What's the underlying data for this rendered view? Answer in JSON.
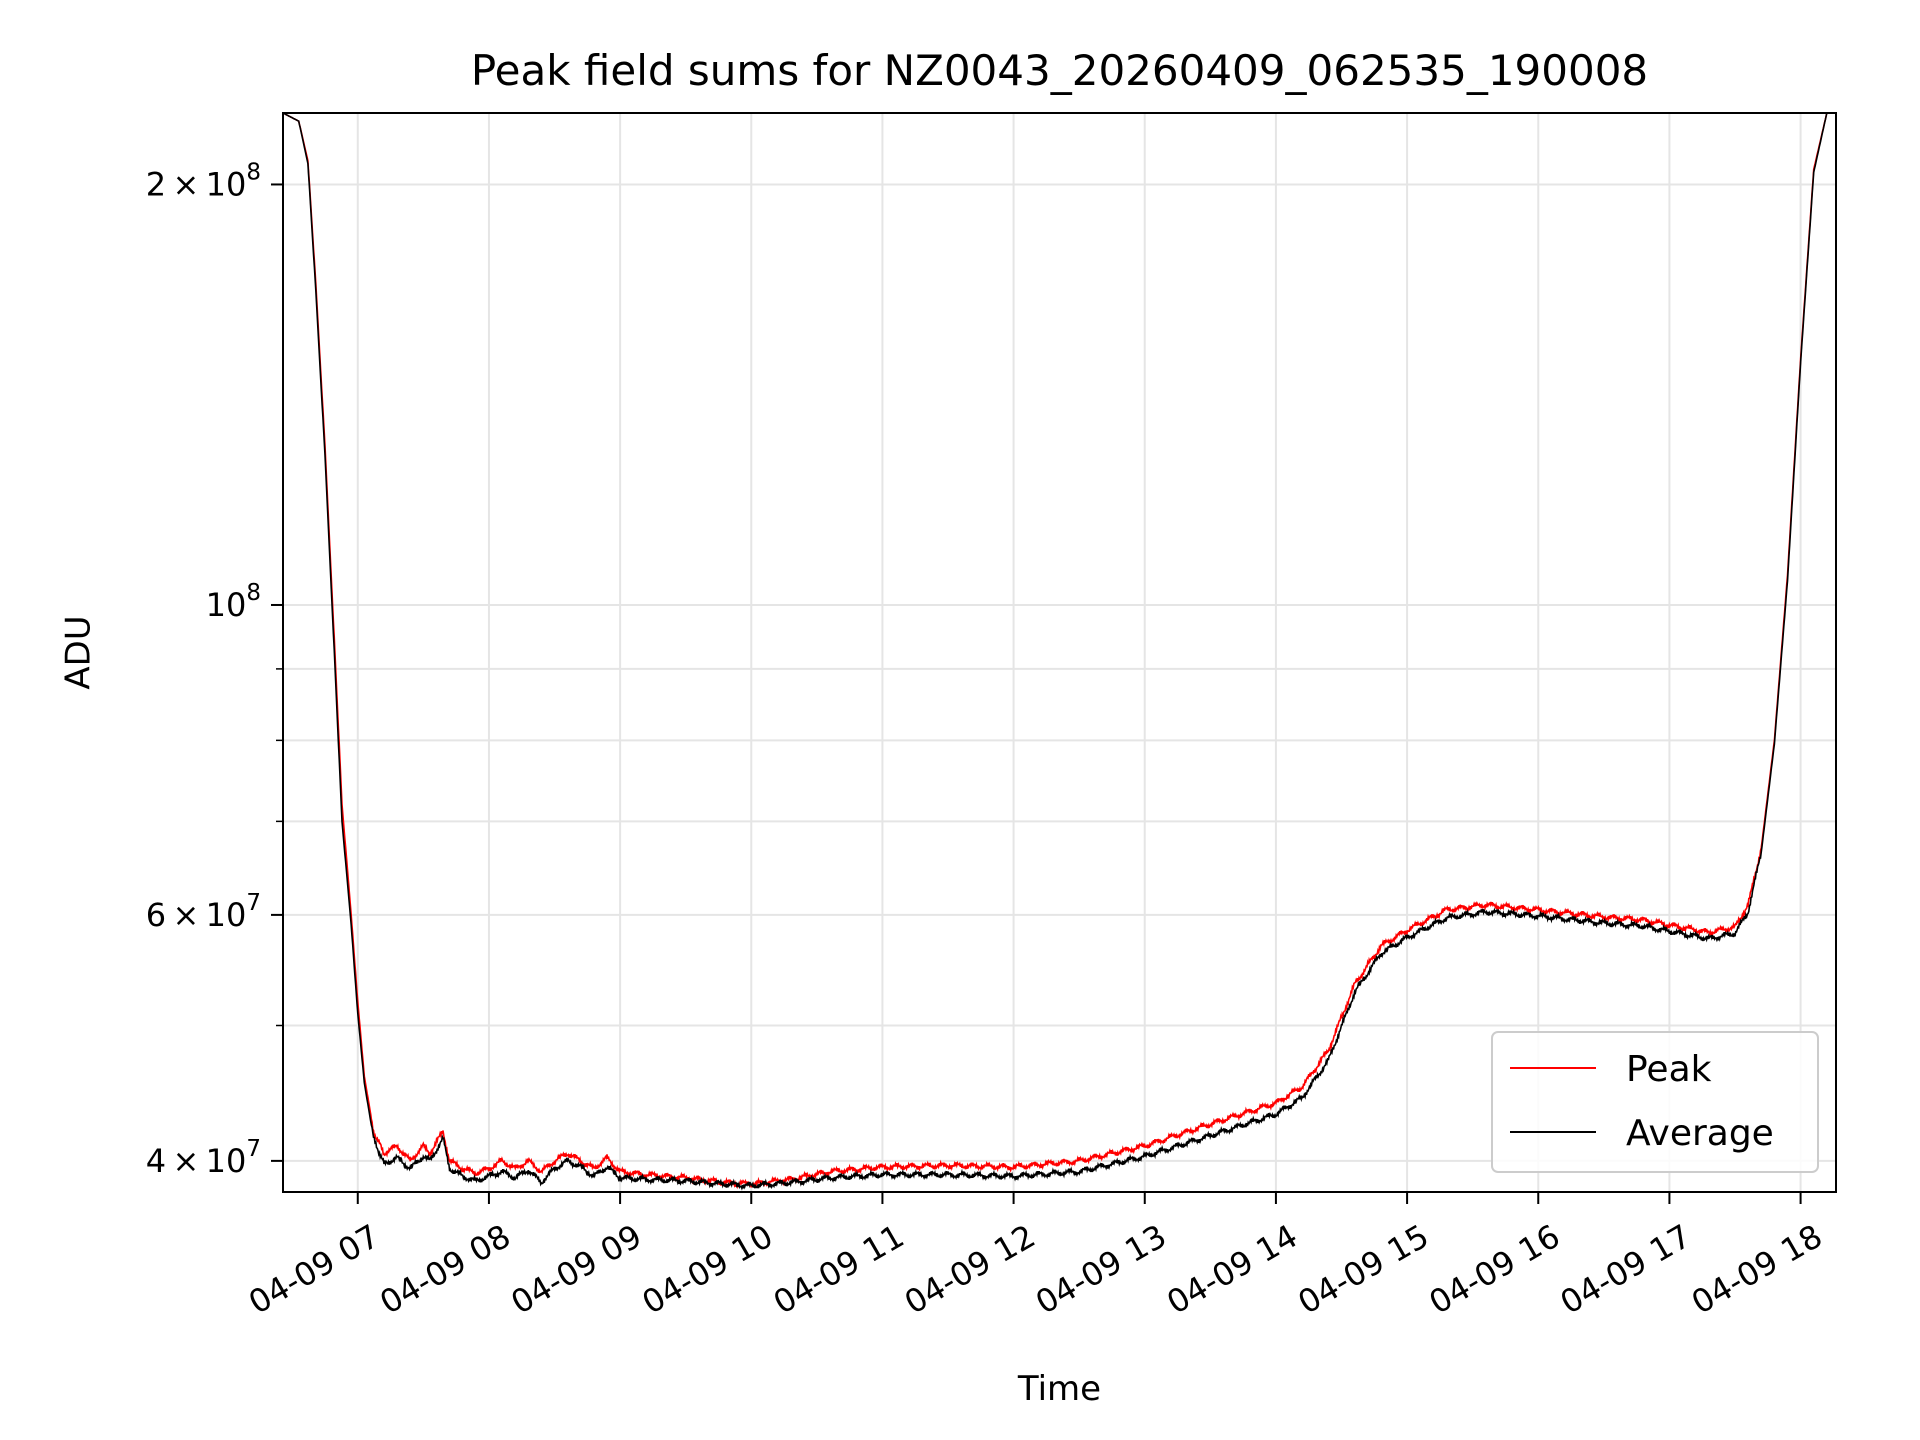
{
  "chart_data": {
    "type": "line",
    "title": "Peak field sums for NZ0043_20260409_062535_190008",
    "xlabel": "Time",
    "ylabel": "ADU",
    "yscale": "log",
    "xlim": [
      6.43,
      18.27
    ],
    "ylim": [
      38000000,
      225000000
    ],
    "grid": true,
    "legend_position": "lower-right",
    "x_ticks": [
      {
        "value": 7,
        "label": "04-09 07"
      },
      {
        "value": 8,
        "label": "04-09 08"
      },
      {
        "value": 9,
        "label": "04-09 09"
      },
      {
        "value": 10,
        "label": "04-09 10"
      },
      {
        "value": 11,
        "label": "04-09 11"
      },
      {
        "value": 12,
        "label": "04-09 12"
      },
      {
        "value": 13,
        "label": "04-09 13"
      },
      {
        "value": 14,
        "label": "04-09 14"
      },
      {
        "value": 15,
        "label": "04-09 15"
      },
      {
        "value": 16,
        "label": "04-09 16"
      },
      {
        "value": 17,
        "label": "04-09 17"
      },
      {
        "value": 18,
        "label": "04-09 18"
      }
    ],
    "y_major_ticks": [
      {
        "value": 40000000,
        "mantissa": "4",
        "exponent": "7"
      },
      {
        "value": 60000000,
        "mantissa": "6",
        "exponent": "7"
      },
      {
        "value": 100000000,
        "mantissa": "",
        "exponent": "8"
      },
      {
        "value": 200000000,
        "mantissa": "2",
        "exponent": "8"
      }
    ],
    "y_minor_ticks": [
      50000000,
      70000000,
      80000000,
      90000000
    ],
    "series": [
      {
        "name": "Peak",
        "color": "#ff0000",
        "x": [
          6.43,
          6.55,
          6.62,
          6.68,
          6.75,
          6.82,
          6.88,
          6.95,
          7.0,
          7.05,
          7.12,
          7.2,
          7.3,
          7.4,
          7.5,
          7.55,
          7.65,
          7.7,
          7.8,
          7.9,
          8.0,
          8.1,
          8.2,
          8.3,
          8.4,
          8.5,
          8.6,
          8.7,
          8.8,
          8.9,
          9.0,
          9.2,
          9.5,
          9.8,
          10.0,
          10.3,
          10.6,
          11.0,
          11.5,
          12.0,
          12.5,
          13.0,
          13.5,
          14.0,
          14.2,
          14.4,
          14.6,
          14.8,
          15.0,
          15.3,
          15.6,
          16.0,
          16.5,
          16.8,
          17.0,
          17.3,
          17.5,
          17.6,
          17.7,
          17.8,
          17.9,
          18.0,
          18.1,
          18.2,
          18.27
        ],
        "y": [
          225000000,
          222000000,
          208000000,
          170000000,
          130000000,
          95000000,
          72000000,
          60000000,
          52000000,
          46000000,
          42000000,
          40500000,
          41000000,
          40000000,
          41000000,
          40500000,
          42000000,
          40000000,
          39500000,
          39200000,
          39500000,
          40000000,
          39500000,
          40000000,
          39300000,
          40000000,
          40500000,
          40000000,
          39500000,
          40200000,
          39300000,
          39100000,
          38900000,
          38600000,
          38500000,
          38800000,
          39300000,
          39600000,
          39700000,
          39600000,
          40000000,
          41000000,
          42500000,
          44000000,
          45200000,
          48000000,
          53500000,
          57000000,
          58500000,
          60500000,
          61000000,
          60500000,
          59800000,
          59500000,
          59000000,
          58300000,
          58800000,
          61000000,
          67000000,
          80000000,
          105000000,
          150000000,
          205000000,
          225000000,
          225000000
        ]
      },
      {
        "name": "Average",
        "color": "#000000",
        "x": [
          6.43,
          6.55,
          6.62,
          6.68,
          6.75,
          6.82,
          6.88,
          6.95,
          7.0,
          7.05,
          7.12,
          7.2,
          7.3,
          7.4,
          7.5,
          7.55,
          7.65,
          7.7,
          7.8,
          7.9,
          8.0,
          8.1,
          8.2,
          8.3,
          8.4,
          8.5,
          8.6,
          8.7,
          8.8,
          8.9,
          9.0,
          9.2,
          9.5,
          9.8,
          10.0,
          10.3,
          10.6,
          11.0,
          11.5,
          12.0,
          12.5,
          13.0,
          13.5,
          14.0,
          14.2,
          14.4,
          14.6,
          14.8,
          15.0,
          15.3,
          15.6,
          16.0,
          16.5,
          16.8,
          17.0,
          17.3,
          17.5,
          17.6,
          17.7,
          17.8,
          17.9,
          18.0,
          18.1,
          18.2,
          18.27
        ],
        "y": [
          225000000,
          222000000,
          207000000,
          168000000,
          128000000,
          93000000,
          70000000,
          59000000,
          51000000,
          45500000,
          41500000,
          39800000,
          40200000,
          39500000,
          40300000,
          40000000,
          41500000,
          39500000,
          39000000,
          38700000,
          39000000,
          39300000,
          38900000,
          39400000,
          38600000,
          39500000,
          40000000,
          39600000,
          39000000,
          39600000,
          38900000,
          38800000,
          38700000,
          38500000,
          38400000,
          38600000,
          38900000,
          39100000,
          39100000,
          39000000,
          39300000,
          40300000,
          41700000,
          43200000,
          44400000,
          47200000,
          52800000,
          56300000,
          57800000,
          59700000,
          60300000,
          59900000,
          59200000,
          58900000,
          58400000,
          57700000,
          58200000,
          60300000,
          66500000,
          79500000,
          104000000,
          149000000,
          204000000,
          225000000,
          225000000
        ]
      }
    ]
  }
}
